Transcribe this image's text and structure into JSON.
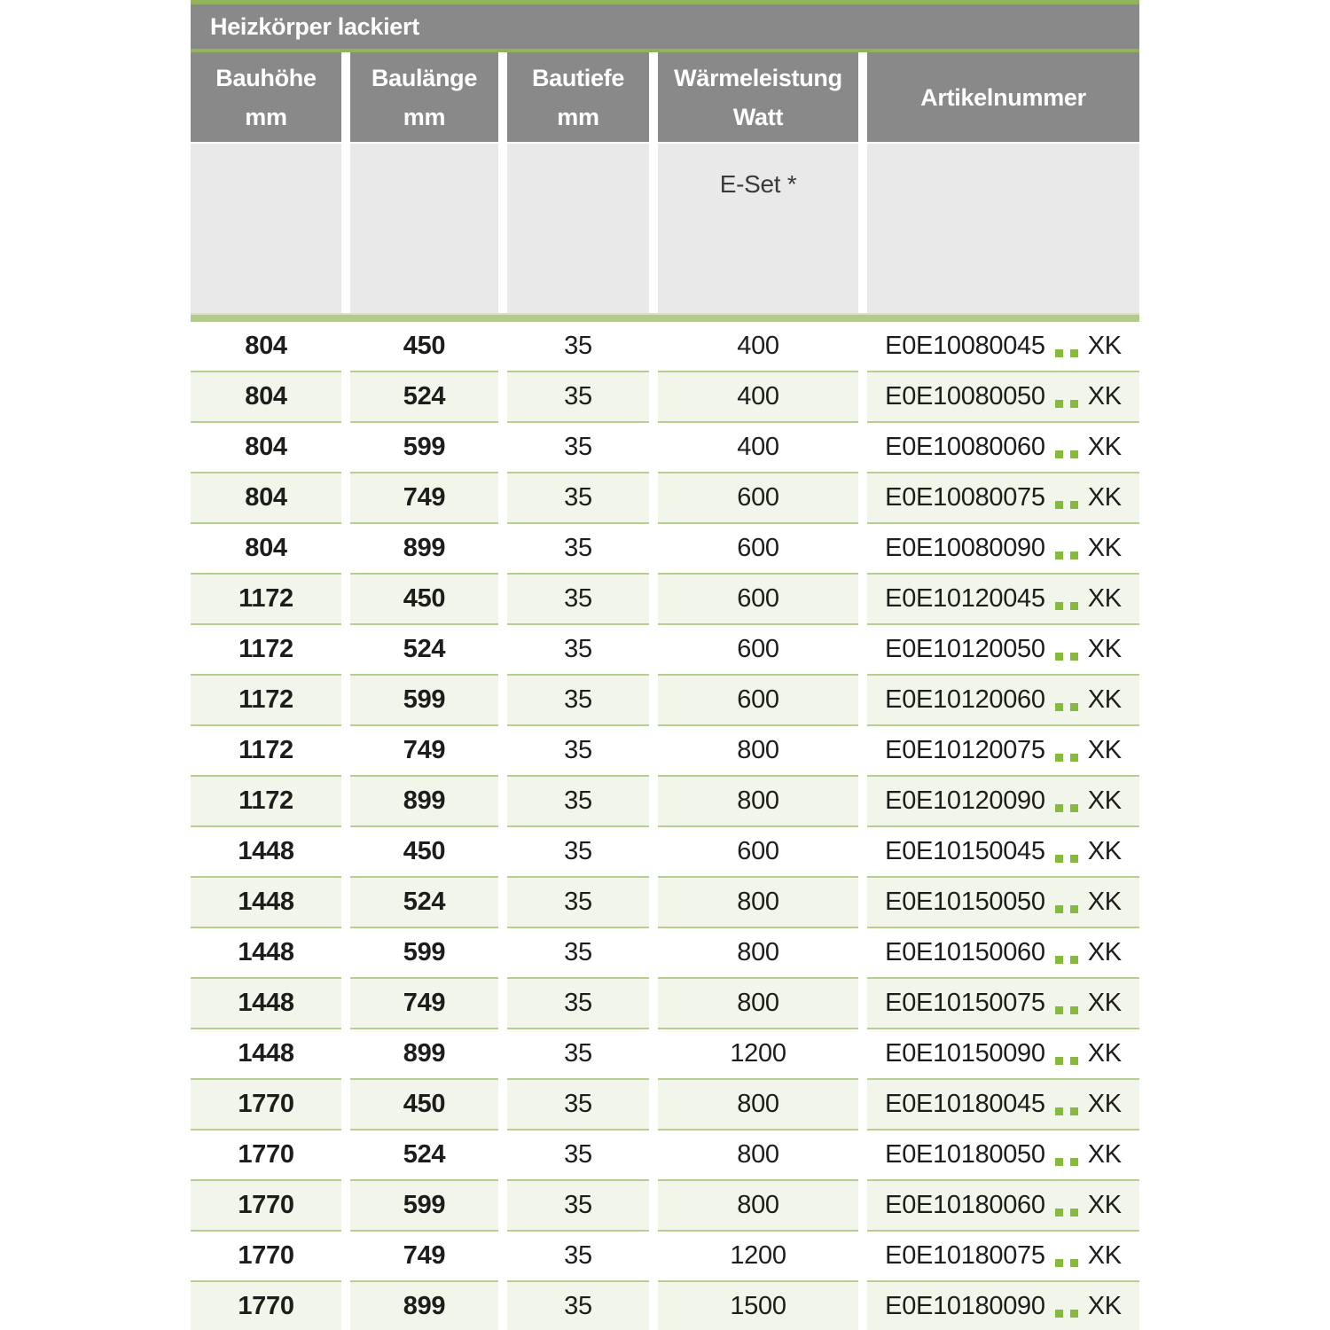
{
  "table": {
    "title": "Heizkörper lackiert",
    "columns": [
      {
        "label": "Bauhöhe",
        "unit": "mm"
      },
      {
        "label": "Baulänge",
        "unit": "mm"
      },
      {
        "label": "Bautiefe",
        "unit": "mm"
      },
      {
        "label": "Wärmeleistung",
        "unit": "Watt"
      },
      {
        "label": "Artikelnummer",
        "unit": ""
      }
    ],
    "subheader": {
      "eset_label": "E-Set *"
    },
    "rows": [
      {
        "bauhoehe": "804",
        "baulaenge": "450",
        "bautiefe": "35",
        "watt": "400",
        "artikel_code": "E0E10080045",
        "artikel_suffix": "XK"
      },
      {
        "bauhoehe": "804",
        "baulaenge": "524",
        "bautiefe": "35",
        "watt": "400",
        "artikel_code": "E0E10080050",
        "artikel_suffix": "XK"
      },
      {
        "bauhoehe": "804",
        "baulaenge": "599",
        "bautiefe": "35",
        "watt": "400",
        "artikel_code": "E0E10080060",
        "artikel_suffix": "XK"
      },
      {
        "bauhoehe": "804",
        "baulaenge": "749",
        "bautiefe": "35",
        "watt": "600",
        "artikel_code": "E0E10080075",
        "artikel_suffix": "XK"
      },
      {
        "bauhoehe": "804",
        "baulaenge": "899",
        "bautiefe": "35",
        "watt": "600",
        "artikel_code": "E0E10080090",
        "artikel_suffix": "XK"
      },
      {
        "bauhoehe": "1172",
        "baulaenge": "450",
        "bautiefe": "35",
        "watt": "600",
        "artikel_code": "E0E10120045",
        "artikel_suffix": "XK"
      },
      {
        "bauhoehe": "1172",
        "baulaenge": "524",
        "bautiefe": "35",
        "watt": "600",
        "artikel_code": "E0E10120050",
        "artikel_suffix": "XK"
      },
      {
        "bauhoehe": "1172",
        "baulaenge": "599",
        "bautiefe": "35",
        "watt": "600",
        "artikel_code": "E0E10120060",
        "artikel_suffix": "XK"
      },
      {
        "bauhoehe": "1172",
        "baulaenge": "749",
        "bautiefe": "35",
        "watt": "800",
        "artikel_code": "E0E10120075",
        "artikel_suffix": "XK"
      },
      {
        "bauhoehe": "1172",
        "baulaenge": "899",
        "bautiefe": "35",
        "watt": "800",
        "artikel_code": "E0E10120090",
        "artikel_suffix": "XK"
      },
      {
        "bauhoehe": "1448",
        "baulaenge": "450",
        "bautiefe": "35",
        "watt": "600",
        "artikel_code": "E0E10150045",
        "artikel_suffix": "XK"
      },
      {
        "bauhoehe": "1448",
        "baulaenge": "524",
        "bautiefe": "35",
        "watt": "800",
        "artikel_code": "E0E10150050",
        "artikel_suffix": "XK"
      },
      {
        "bauhoehe": "1448",
        "baulaenge": "599",
        "bautiefe": "35",
        "watt": "800",
        "artikel_code": "E0E10150060",
        "artikel_suffix": "XK"
      },
      {
        "bauhoehe": "1448",
        "baulaenge": "749",
        "bautiefe": "35",
        "watt": "800",
        "artikel_code": "E0E10150075",
        "artikel_suffix": "XK"
      },
      {
        "bauhoehe": "1448",
        "baulaenge": "899",
        "bautiefe": "35",
        "watt": "1200",
        "artikel_code": "E0E10150090",
        "artikel_suffix": "XK"
      },
      {
        "bauhoehe": "1770",
        "baulaenge": "450",
        "bautiefe": "35",
        "watt": "800",
        "artikel_code": "E0E10180045",
        "artikel_suffix": "XK"
      },
      {
        "bauhoehe": "1770",
        "baulaenge": "524",
        "bautiefe": "35",
        "watt": "800",
        "artikel_code": "E0E10180050",
        "artikel_suffix": "XK"
      },
      {
        "bauhoehe": "1770",
        "baulaenge": "599",
        "bautiefe": "35",
        "watt": "800",
        "artikel_code": "E0E10180060",
        "artikel_suffix": "XK"
      },
      {
        "bauhoehe": "1770",
        "baulaenge": "749",
        "bautiefe": "35",
        "watt": "1200",
        "artikel_code": "E0E10180075",
        "artikel_suffix": "XK"
      },
      {
        "bauhoehe": "1770",
        "baulaenge": "899",
        "bautiefe": "35",
        "watt": "1500",
        "artikel_code": "E0E10180090",
        "artikel_suffix": "XK"
      }
    ]
  },
  "colors": {
    "accent_green": "#92b35c",
    "separator_green": "#b2cb8d",
    "line_green": "#b6ce90",
    "row_green": "#f2f6ea",
    "dot_green": "#85ba3f",
    "header_gray": "#898989",
    "subheader_gray": "#e9e9e9"
  }
}
